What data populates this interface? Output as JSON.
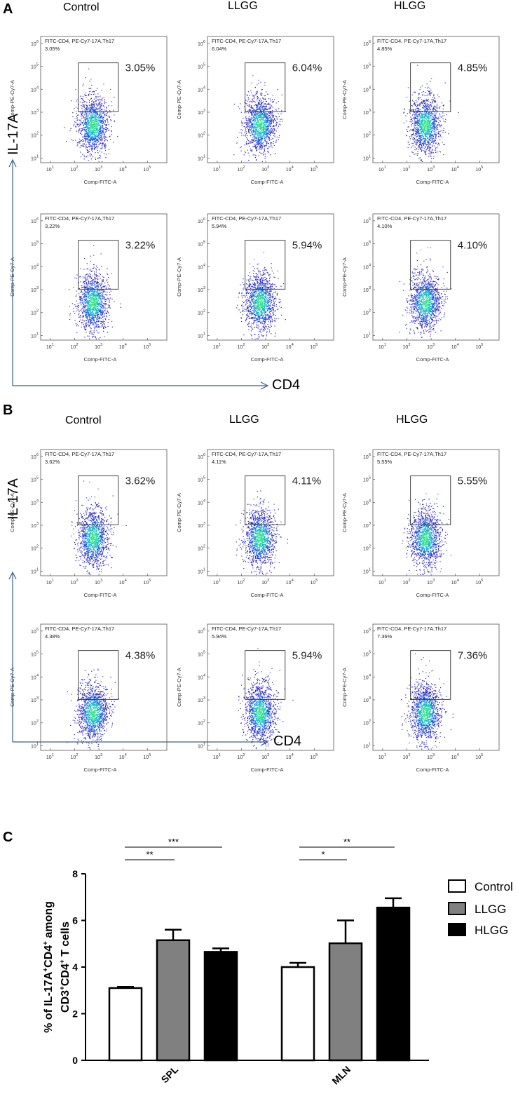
{
  "panels": {
    "A": {
      "letter": "A",
      "groups": [
        "Control",
        "LLGG",
        "HLGG"
      ],
      "y_axis_label": "IL-17A",
      "x_axis_label": "CD4",
      "plots": [
        {
          "header": "FITC-CD4, PE-Cy7-17A,Th17",
          "small_pct": "3.05%",
          "gate_pct": "3.05%"
        },
        {
          "header": "FITC-CD4, PE-Cy7-17A,Th17",
          "small_pct": "6.04%",
          "gate_pct": "6.04%"
        },
        {
          "header": "FITC-CD4, PE-Cy7-17A,Th17",
          "small_pct": "4.85%",
          "gate_pct": "4.85%"
        },
        {
          "header": "FITC-CD4, PE-Cy7-17A,Th17",
          "small_pct": "3.22%",
          "gate_pct": "3.22%"
        },
        {
          "header": "FITC-CD4, PE-Cy7-17A,Th17",
          "small_pct": "5.94%",
          "gate_pct": "5.94%"
        },
        {
          "header": "FITC-CD4, PE-Cy7-17A,Th17",
          "small_pct": "4.10%",
          "gate_pct": "4.10%"
        }
      ]
    },
    "B": {
      "letter": "B",
      "groups": [
        "Control",
        "LLGG",
        "HLGG"
      ],
      "y_axis_label": "IL-17A",
      "x_axis_label": "CD4",
      "plots": [
        {
          "header": "FITC-CD4, PE-Cy7-17A,Th17",
          "small_pct": "3.62%",
          "gate_pct": "3.62%"
        },
        {
          "header": "FITC-CD4, PE-Cy7-17A,Th17",
          "small_pct": "4.11%",
          "gate_pct": "4.11%"
        },
        {
          "header": "FITC-CD4, PE-Cy7-17A,Th17",
          "small_pct": "5.55%",
          "gate_pct": "5.55%"
        },
        {
          "header": "FITC-CD4, PE-Cy7-17A,Th17",
          "small_pct": "4.38%",
          "gate_pct": "4.38%"
        },
        {
          "header": "FITC-CD4, PE-Cy7-17A,Th17",
          "small_pct": "5.94%",
          "gate_pct": "5.94%"
        },
        {
          "header": "FITC-CD4, PE-Cy7-17A,Th17",
          "small_pct": "7.36%",
          "gate_pct": "7.36%"
        }
      ]
    },
    "C": {
      "letter": "C"
    }
  },
  "flow_axes": {
    "x_label": "Comp-FITC-A",
    "y_label": "Comp-PE-Cy7-A",
    "ticks": [
      "1",
      "2",
      "3",
      "4",
      "5"
    ],
    "y_ticks": [
      "1",
      "2",
      "3",
      "4",
      "5",
      "6"
    ],
    "tick_base": "10"
  },
  "chart_data": {
    "type": "bar",
    "categories": [
      "SPL",
      "MLN"
    ],
    "series": [
      {
        "name": "Control",
        "values": [
          3.1,
          4.0
        ],
        "errors": [
          0.05,
          0.18
        ],
        "color": "#ffffff"
      },
      {
        "name": "LLGG",
        "values": [
          5.15,
          5.02
        ],
        "errors": [
          0.45,
          0.98
        ],
        "color": "#808080"
      },
      {
        "name": "HLGG",
        "values": [
          4.65,
          6.55
        ],
        "errors": [
          0.15,
          0.4
        ],
        "color": "#000000"
      }
    ],
    "ylim": [
      0,
      8
    ],
    "yticks": [
      0,
      2,
      4,
      6,
      8
    ],
    "ylabel_line1": "% of IL-17A",
    "ylabel_line2": "CD3",
    "ylabel_sup1": "+",
    "ylabel_mid1": "CD4",
    "ylabel_mid2": " among",
    "ylabel_mid3": " T  cells",
    "significance": [
      {
        "label": "**",
        "category": "SPL",
        "from": "Control",
        "to": "LLGG"
      },
      {
        "label": "***",
        "category": "SPL",
        "from": "Control",
        "to": "HLGG"
      },
      {
        "label": "*",
        "category": "MLN",
        "from": "Control",
        "to": "LLGG"
      },
      {
        "label": "**",
        "category": "MLN",
        "from": "Control",
        "to": "HLGG"
      }
    ],
    "legend": [
      "Control",
      "LLGG",
      "HLGG"
    ]
  }
}
